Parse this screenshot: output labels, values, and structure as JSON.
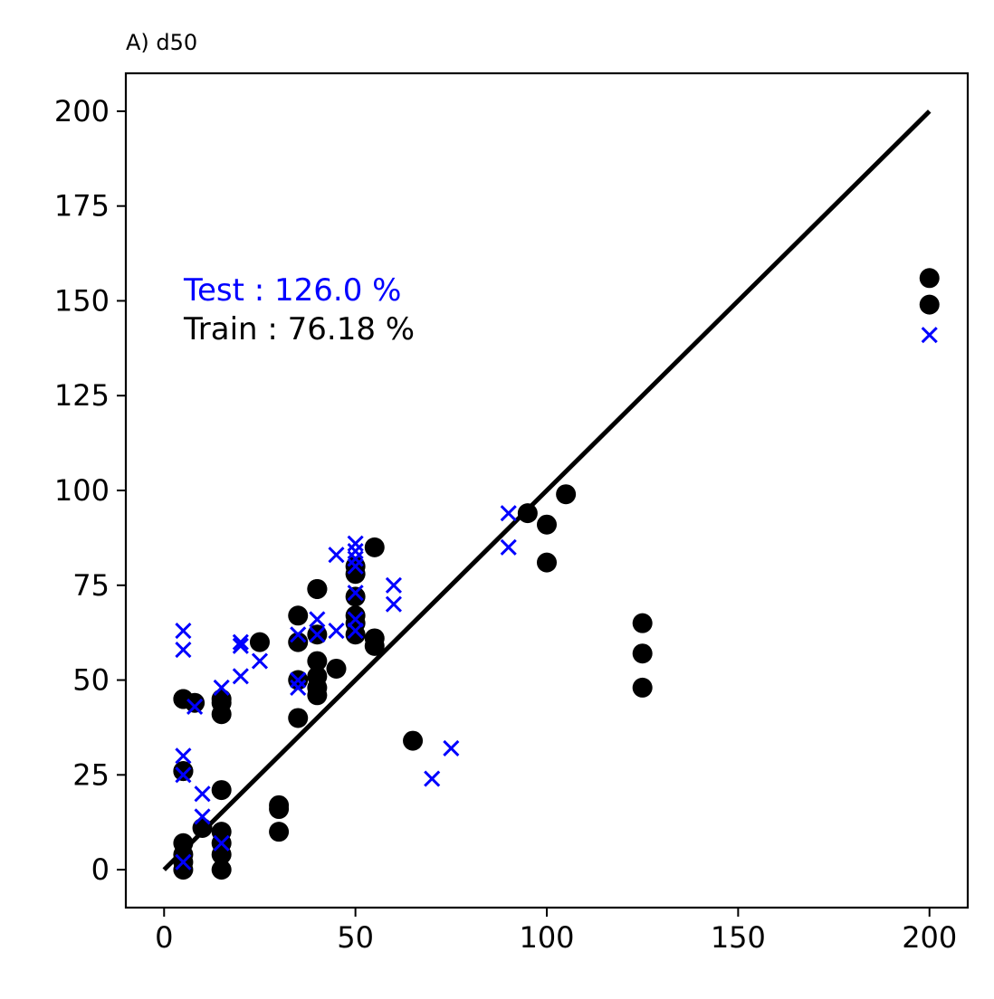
{
  "chart_data": {
    "type": "scatter",
    "title": "A) d50",
    "xlabel": "",
    "ylabel": "",
    "xlim": [
      -10,
      210
    ],
    "ylim": [
      -10,
      210
    ],
    "x_ticks": [
      0,
      50,
      100,
      150,
      200
    ],
    "y_ticks": [
      0,
      25,
      50,
      75,
      100,
      125,
      150,
      175,
      200
    ],
    "grid": false,
    "reference_line": {
      "x": [
        0,
        200
      ],
      "y": [
        0,
        200
      ],
      "color": "#000000"
    },
    "annotations": [
      {
        "text": "Test : 126.0 %",
        "color": "#0000ff"
      },
      {
        "text": "Train : 76.18 %",
        "color": "#000000"
      }
    ],
    "series": [
      {
        "marker": "circle",
        "color": "#000000",
        "x": [
          5,
          5,
          5,
          5,
          5,
          5,
          5,
          5,
          8,
          10,
          15,
          15,
          15,
          15,
          15,
          15,
          15,
          15,
          25,
          30,
          30,
          30,
          35,
          35,
          35,
          35,
          40,
          40,
          40,
          40,
          40,
          40,
          40,
          45,
          50,
          50,
          50,
          50,
          50,
          50,
          55,
          55,
          55,
          65,
          95,
          100,
          100,
          105,
          125,
          125,
          125,
          200,
          200
        ],
        "y": [
          0,
          2,
          4,
          7,
          26,
          26,
          45,
          45,
          44,
          11,
          0,
          4,
          7,
          10,
          21,
          41,
          44,
          45,
          60,
          10,
          16,
          17,
          40,
          50,
          60,
          67,
          46,
          48,
          51,
          55,
          62,
          74,
          74,
          53,
          62,
          65,
          67,
          72,
          78,
          80,
          59,
          61,
          85,
          34,
          94,
          91,
          81,
          99,
          48,
          57,
          65,
          149,
          156
        ]
      },
      {
        "marker": "x",
        "color": "#0000ff",
        "x": [
          5,
          5,
          5,
          5,
          5,
          8,
          10,
          10,
          15,
          15,
          20,
          20,
          20,
          25,
          35,
          35,
          35,
          40,
          40,
          45,
          45,
          50,
          50,
          50,
          50,
          50,
          50,
          50,
          60,
          60,
          70,
          75,
          90,
          90,
          200
        ],
        "y": [
          2,
          25,
          30,
          58,
          63,
          43,
          14,
          20,
          7,
          48,
          51,
          59,
          60,
          55,
          48,
          50,
          62,
          62,
          66,
          63,
          83,
          63,
          66,
          73,
          80,
          82,
          84,
          86,
          70,
          75,
          24,
          32,
          85,
          94,
          141
        ]
      }
    ]
  }
}
